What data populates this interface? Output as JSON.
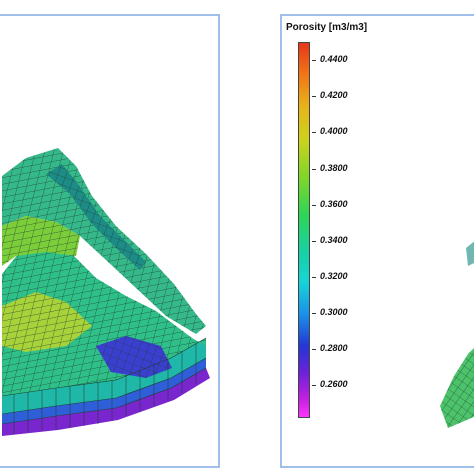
{
  "legend": {
    "title": "Porosity [m3/m3]",
    "ticks": [
      "0.4400",
      "0.4200",
      "0.4000",
      "0.3800",
      "0.3600",
      "0.3400",
      "0.3200",
      "0.3000",
      "0.2800",
      "0.2600"
    ]
  },
  "colors": {
    "panel_border": "#9fbfe8",
    "high": "#e8361a",
    "mid": "#17d2a4",
    "low": "#ff33ff"
  }
}
